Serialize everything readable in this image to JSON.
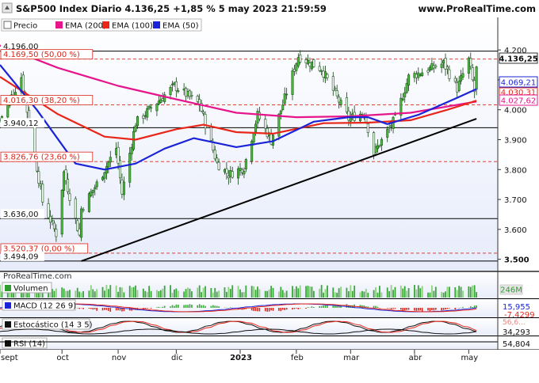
{
  "header": {
    "title": "S&P500 Index Diario 4.136,25 +1,85 % 5 may 2023 21:59:59",
    "site": "www.ProRealTime.com"
  },
  "legend": [
    {
      "label": "Precio",
      "color": "#ffffff",
      "icon": "checkbox-icon"
    },
    {
      "label": "EMA (200)",
      "color": "#e6158c"
    },
    {
      "label": "EMA (100)",
      "color": "#e8271a"
    },
    {
      "label": "EMA (50)",
      "color": "#1a24d6"
    }
  ],
  "colors": {
    "bullish": "#2f9e2f",
    "bearish": "#1a7a1a",
    "ema200": "#e6158c",
    "ema100": "#e8271a",
    "ema50": "#1a24d6",
    "fib_line": "#d9261b",
    "panel_bg_top": "#ffffff",
    "panel_bg_bottom": "#e7ecfb"
  },
  "price_axis": {
    "ticks": [
      "4.200",
      "4.100",
      "4.000",
      "3.900",
      "3.800",
      "3.700",
      "3.600",
      "3.500"
    ]
  },
  "right_labels": {
    "last_price": "4.136,25",
    "ema50": "4.069,21",
    "ema100": "4.030,31",
    "ema200": "4.027,62"
  },
  "levels": [
    {
      "value": 4196.0,
      "text": "4.196,00",
      "kind": "solid"
    },
    {
      "value": 4169.5,
      "text": "4.169,50 (50,00 %)",
      "kind": "fib"
    },
    {
      "value": 4016.3,
      "text": "4.016,30 (38,20 %)",
      "kind": "fib"
    },
    {
      "value": 3940.12,
      "text": "3.940,12",
      "kind": "solid"
    },
    {
      "value": 3826.76,
      "text": "3.826,76 (23,60 %)",
      "kind": "fib"
    },
    {
      "value": 3636.0,
      "text": "3.636,00",
      "kind": "solid"
    },
    {
      "value": 3520.37,
      "text": "3.520,37 (0,00 %)",
      "kind": "fib"
    },
    {
      "value": 3494.09,
      "text": "3.494,09",
      "kind": "solid"
    }
  ],
  "trendline": {
    "start": {
      "date": "2022-10-13",
      "value": 3494
    },
    "end": {
      "date": "2023-05-05",
      "value": 3970
    }
  },
  "volume_panel": {
    "source_label": "ProRealTime.com",
    "title": "Volumen",
    "value": "246M"
  },
  "macd_panel": {
    "title": "MACD (12 26 9)",
    "value1": "15,955",
    "value2": "-7,4299"
  },
  "stoch_panel": {
    "title": "Estocástico (14 3 5)",
    "value1": "56,6...",
    "value2": "34,293"
  },
  "rsi_panel": {
    "title": "RSI (14)",
    "value": "54,804"
  },
  "x_axis": {
    "labels": [
      "sept",
      "oct",
      "nov",
      "dic",
      "2023",
      "feb",
      "mar",
      "abr",
      "may"
    ]
  },
  "chart_data": {
    "type": "candlestick",
    "title": "S&P500 Index Diario 4.136,25 +1,85 % 5 may 2023 21:59:59",
    "ylim": [
      3470,
      4240
    ],
    "x_range": [
      "2022-09-01",
      "2023-05-16"
    ],
    "price_anchors": [
      {
        "date": "2022-09-01",
        "close": 3966
      },
      {
        "date": "2022-09-12",
        "close": 4110
      },
      {
        "date": "2022-09-23",
        "close": 3693
      },
      {
        "date": "2022-09-30",
        "close": 3585
      },
      {
        "date": "2022-10-04",
        "close": 3790
      },
      {
        "date": "2022-10-12",
        "close": 3580
      },
      {
        "date": "2022-10-13",
        "close": 3669
      },
      {
        "date": "2022-10-21",
        "close": 3752
      },
      {
        "date": "2022-10-31",
        "close": 3872
      },
      {
        "date": "2022-11-03",
        "close": 3720
      },
      {
        "date": "2022-11-10",
        "close": 3956
      },
      {
        "date": "2022-11-30",
        "close": 4080
      },
      {
        "date": "2022-12-13",
        "close": 4019
      },
      {
        "date": "2022-12-22",
        "close": 3822
      },
      {
        "date": "2022-12-28",
        "close": 3783
      },
      {
        "date": "2023-01-05",
        "close": 3808
      },
      {
        "date": "2023-01-12",
        "close": 3983
      },
      {
        "date": "2023-01-19",
        "close": 3898
      },
      {
        "date": "2023-02-02",
        "close": 4179
      },
      {
        "date": "2023-02-14",
        "close": 4136
      },
      {
        "date": "2023-02-28",
        "close": 3970
      },
      {
        "date": "2023-03-08",
        "close": 3992
      },
      {
        "date": "2023-03-13",
        "close": 3855
      },
      {
        "date": "2023-03-24",
        "close": 3970
      },
      {
        "date": "2023-03-31",
        "close": 4109
      },
      {
        "date": "2023-04-18",
        "close": 4155
      },
      {
        "date": "2023-04-25",
        "close": 4071
      },
      {
        "date": "2023-05-01",
        "close": 4167
      },
      {
        "date": "2023-05-04",
        "close": 4061
      },
      {
        "date": "2023-05-05",
        "close": 4136
      }
    ],
    "series": [
      {
        "name": "EMA (200)",
        "color": "#e6158c",
        "points": [
          [
            "2022-09-01",
            4215
          ],
          [
            "2022-10-01",
            4140
          ],
          [
            "2022-11-01",
            4080
          ],
          [
            "2022-12-01",
            4035
          ],
          [
            "2023-01-01",
            3990
          ],
          [
            "2023-02-01",
            3975
          ],
          [
            "2023-03-01",
            3978
          ],
          [
            "2023-04-01",
            3990
          ],
          [
            "2023-05-05",
            4027.62
          ]
        ]
      },
      {
        "name": "EMA (100)",
        "color": "#e8271a",
        "points": [
          [
            "2022-09-01",
            4110
          ],
          [
            "2022-10-01",
            3985
          ],
          [
            "2022-10-25",
            3910
          ],
          [
            "2022-11-10",
            3900
          ],
          [
            "2022-12-01",
            3935
          ],
          [
            "2022-12-15",
            3950
          ],
          [
            "2023-01-01",
            3925
          ],
          [
            "2023-01-20",
            3920
          ],
          [
            "2023-02-15",
            3955
          ],
          [
            "2023-03-10",
            3957
          ],
          [
            "2023-04-01",
            3965
          ],
          [
            "2023-04-20",
            4000
          ],
          [
            "2023-05-05",
            4030.31
          ]
        ]
      },
      {
        "name": "EMA (50)",
        "color": "#1a24d6",
        "points": [
          [
            "2022-09-01",
            4150
          ],
          [
            "2022-09-20",
            4000
          ],
          [
            "2022-10-10",
            3820
          ],
          [
            "2022-10-25",
            3800
          ],
          [
            "2022-11-10",
            3820
          ],
          [
            "2022-11-25",
            3870
          ],
          [
            "2022-12-10",
            3905
          ],
          [
            "2023-01-01",
            3875
          ],
          [
            "2023-01-20",
            3895
          ],
          [
            "2023-02-10",
            3960
          ],
          [
            "2023-02-28",
            3975
          ],
          [
            "2023-03-10",
            3975
          ],
          [
            "2023-03-20",
            3952
          ],
          [
            "2023-04-05",
            3983
          ],
          [
            "2023-04-25",
            4040
          ],
          [
            "2023-05-05",
            4069.21
          ]
        ]
      }
    ]
  }
}
